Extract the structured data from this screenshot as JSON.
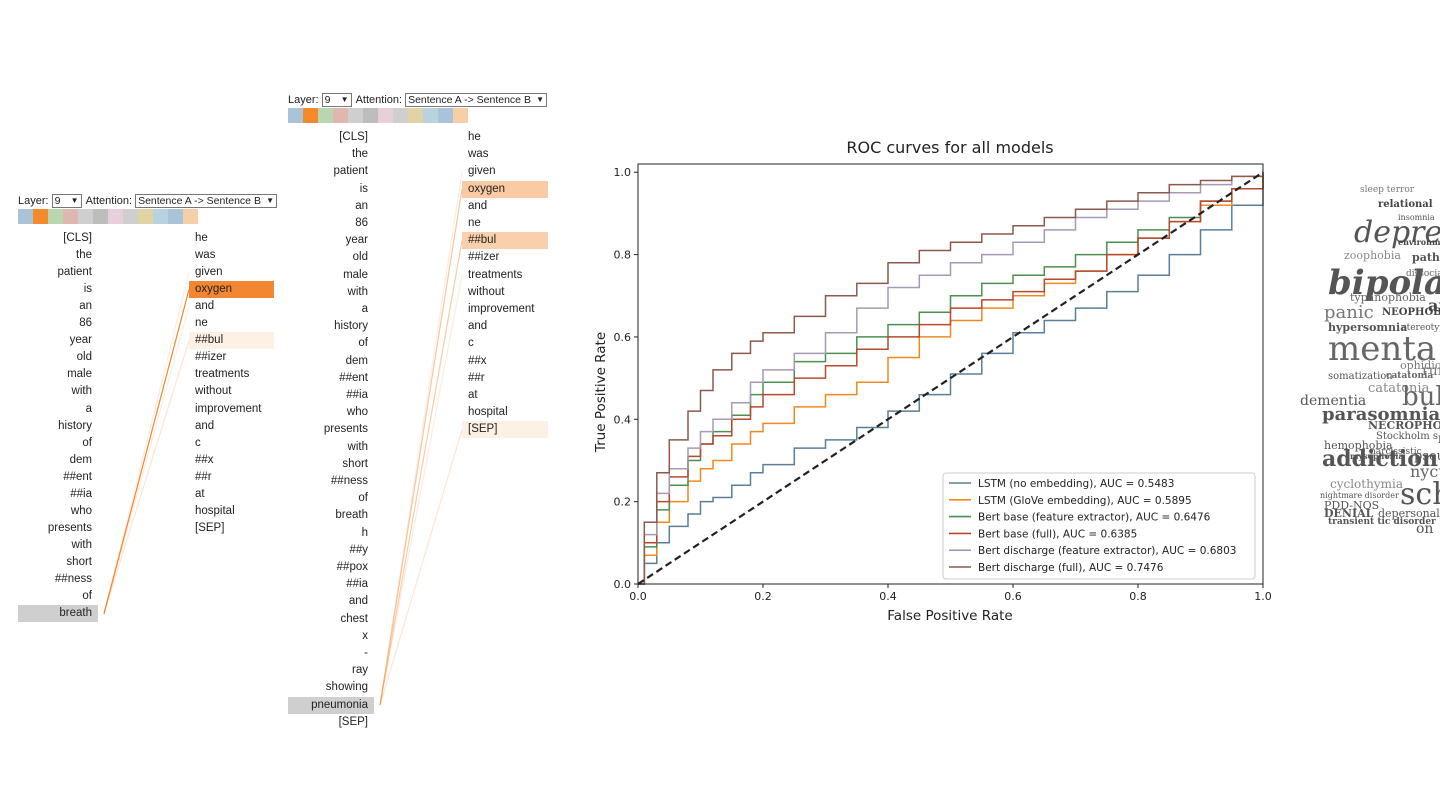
{
  "attention_widgets": [
    {
      "layer_label": "Layer:",
      "layer_value": "9",
      "attention_label": "Attention:",
      "attention_value": "Sentence A -> Sentence B",
      "swatch_colors": [
        "#a9c4d8",
        "#f58a2c",
        "#b9d6b0",
        "#e0b6b0",
        "#cfcfcf",
        "#bdbdbd",
        "#e8cfdc",
        "#cfcfcf",
        "#e2d3a4",
        "#b8d2e0",
        "#a9c4d8",
        "#f7cfa6"
      ],
      "left_tokens": [
        "[CLS]",
        "the",
        "patient",
        "is",
        "an",
        "86",
        "year",
        "old",
        "male",
        "with",
        "a",
        "history",
        "of",
        "dem",
        "##ent",
        "##ia",
        "who",
        "presents",
        "with",
        "short",
        "##ness",
        "of",
        "breath"
      ],
      "right_tokens": [
        "he",
        "was",
        "given",
        "oxygen",
        "and",
        "ne",
        "##bul",
        "##izer",
        "treatments",
        "without",
        "improvement",
        "and",
        "c",
        "##x",
        "##r",
        "at",
        "hospital",
        "[SEP]"
      ],
      "selected_left": 22,
      "right_weights": [
        0,
        0,
        0,
        0.95,
        0,
        0,
        0.12,
        0,
        0,
        0,
        0,
        0,
        0,
        0,
        0,
        0,
        0,
        0
      ],
      "links": [
        {
          "from": 22,
          "to": 3,
          "weight": 0.95
        },
        {
          "from": 22,
          "to": 6,
          "weight": 0.2
        },
        {
          "from": 22,
          "to": 2,
          "weight": 0.08
        },
        {
          "from": 22,
          "to": 4,
          "weight": 0.06
        }
      ]
    },
    {
      "layer_label": "Layer:",
      "layer_value": "9",
      "attention_label": "Attention:",
      "attention_value": "Sentence A -> Sentence B",
      "swatch_colors": [
        "#a9c4d8",
        "#f58a2c",
        "#b9d6b0",
        "#e0b6b0",
        "#cfcfcf",
        "#bdbdbd",
        "#e8cfdc",
        "#cfcfcf",
        "#e2d3a4",
        "#b8d2e0",
        "#a9c4d8",
        "#f7cfa6"
      ],
      "left_tokens": [
        "[CLS]",
        "the",
        "patient",
        "is",
        "an",
        "86",
        "year",
        "old",
        "male",
        "with",
        "a",
        "history",
        "of",
        "dem",
        "##ent",
        "##ia",
        "who",
        "presents",
        "with",
        "short",
        "##ness",
        "of",
        "breath",
        "h",
        "##y",
        "##pox",
        "##ia",
        "and",
        "chest",
        "x",
        "-",
        "ray",
        "showing",
        "pneumonia",
        "[SEP]"
      ],
      "right_tokens": [
        "he",
        "was",
        "given",
        "oxygen",
        "and",
        "ne",
        "##bul",
        "##izer",
        "treatments",
        "without",
        "improvement",
        "and",
        "c",
        "##x",
        "##r",
        "at",
        "hospital",
        "[SEP]"
      ],
      "selected_left": 33,
      "right_weights": [
        0,
        0,
        0,
        0.42,
        0,
        0,
        0.38,
        0,
        0,
        0,
        0,
        0,
        0,
        0,
        0,
        0,
        0,
        0.12
      ],
      "links": [
        {
          "from": 33,
          "to": 3,
          "weight": 0.45
        },
        {
          "from": 33,
          "to": 6,
          "weight": 0.4
        },
        {
          "from": 33,
          "to": 17,
          "weight": 0.2
        },
        {
          "from": 33,
          "to": 8,
          "weight": 0.08
        },
        {
          "from": 33,
          "to": 2,
          "weight": 0.06
        }
      ]
    }
  ],
  "chart_data": {
    "type": "line",
    "title": "ROC curves for all models",
    "xlabel": "False Positive Rate",
    "ylabel": "True Positive Rate",
    "xlim": [
      0,
      1
    ],
    "ylim": [
      0,
      1.02
    ],
    "xticks": [
      "0.0",
      "0.2",
      "0.4",
      "0.6",
      "0.8",
      "1.0"
    ],
    "yticks": [
      "0.0",
      "0.2",
      "0.4",
      "0.6",
      "0.8",
      "1.0"
    ],
    "legend_position": "lower-right",
    "grid": false,
    "diagonal": {
      "x": [
        0,
        1
      ],
      "y": [
        0,
        1
      ],
      "style": "dashed",
      "color": "#222222"
    },
    "series": [
      {
        "name": "LSTM (no embedding), AUC = 0.5483",
        "color": "#5b7f99",
        "x": [
          0,
          0.01,
          0.03,
          0.05,
          0.08,
          0.1,
          0.12,
          0.15,
          0.18,
          0.2,
          0.25,
          0.3,
          0.35,
          0.4,
          0.45,
          0.5,
          0.55,
          0.6,
          0.65,
          0.7,
          0.75,
          0.8,
          0.85,
          0.9,
          0.95,
          1.0
        ],
        "y": [
          0,
          0.05,
          0.1,
          0.14,
          0.17,
          0.2,
          0.21,
          0.24,
          0.27,
          0.29,
          0.33,
          0.35,
          0.38,
          0.42,
          0.46,
          0.51,
          0.56,
          0.61,
          0.64,
          0.67,
          0.71,
          0.75,
          0.8,
          0.86,
          0.92,
          1.0
        ]
      },
      {
        "name": "LSTM (GloVe embedding), AUC = 0.5895",
        "color": "#f0891f",
        "x": [
          0,
          0.01,
          0.03,
          0.05,
          0.08,
          0.1,
          0.12,
          0.15,
          0.18,
          0.2,
          0.25,
          0.3,
          0.35,
          0.4,
          0.45,
          0.5,
          0.55,
          0.6,
          0.65,
          0.7,
          0.75,
          0.8,
          0.85,
          0.9,
          0.95,
          1.0
        ],
        "y": [
          0,
          0.07,
          0.15,
          0.2,
          0.25,
          0.28,
          0.3,
          0.34,
          0.37,
          0.39,
          0.43,
          0.46,
          0.49,
          0.55,
          0.6,
          0.64,
          0.67,
          0.7,
          0.73,
          0.76,
          0.8,
          0.84,
          0.88,
          0.92,
          0.96,
          1.0
        ]
      },
      {
        "name": "Bert base (feature extractor), AUC = 0.6476",
        "color": "#4e8f51",
        "x": [
          0,
          0.01,
          0.03,
          0.05,
          0.08,
          0.1,
          0.12,
          0.15,
          0.18,
          0.2,
          0.25,
          0.3,
          0.35,
          0.4,
          0.45,
          0.5,
          0.55,
          0.6,
          0.65,
          0.7,
          0.75,
          0.8,
          0.85,
          0.9,
          0.95,
          1.0
        ],
        "y": [
          0,
          0.09,
          0.18,
          0.24,
          0.3,
          0.34,
          0.37,
          0.41,
          0.46,
          0.49,
          0.54,
          0.56,
          0.6,
          0.63,
          0.66,
          0.7,
          0.73,
          0.75,
          0.77,
          0.8,
          0.83,
          0.86,
          0.89,
          0.93,
          0.96,
          1.0
        ]
      },
      {
        "name": "Bert base (full), AUC = 0.6385",
        "color": "#b7492e",
        "x": [
          0,
          0.01,
          0.03,
          0.05,
          0.08,
          0.1,
          0.12,
          0.15,
          0.18,
          0.2,
          0.25,
          0.3,
          0.35,
          0.4,
          0.45,
          0.5,
          0.55,
          0.6,
          0.65,
          0.7,
          0.75,
          0.8,
          0.85,
          0.9,
          0.95,
          1.0
        ],
        "y": [
          0,
          0.1,
          0.2,
          0.26,
          0.31,
          0.34,
          0.36,
          0.4,
          0.43,
          0.46,
          0.5,
          0.53,
          0.57,
          0.6,
          0.63,
          0.67,
          0.69,
          0.71,
          0.74,
          0.76,
          0.8,
          0.84,
          0.88,
          0.93,
          0.96,
          1.0
        ]
      },
      {
        "name": "Bert discharge (feature extractor), AUC = 0.6803",
        "color": "#a69ab6",
        "x": [
          0,
          0.01,
          0.03,
          0.05,
          0.08,
          0.1,
          0.12,
          0.15,
          0.18,
          0.2,
          0.25,
          0.3,
          0.35,
          0.4,
          0.45,
          0.5,
          0.55,
          0.6,
          0.65,
          0.7,
          0.75,
          0.8,
          0.85,
          0.9,
          0.95,
          1.0
        ],
        "y": [
          0,
          0.12,
          0.22,
          0.28,
          0.33,
          0.37,
          0.4,
          0.44,
          0.49,
          0.52,
          0.56,
          0.61,
          0.67,
          0.72,
          0.75,
          0.78,
          0.8,
          0.83,
          0.86,
          0.89,
          0.91,
          0.93,
          0.95,
          0.97,
          0.99,
          1.0
        ]
      },
      {
        "name": "Bert discharge (full), AUC = 0.7476",
        "color": "#8b5a4b",
        "x": [
          0,
          0.01,
          0.03,
          0.05,
          0.08,
          0.1,
          0.12,
          0.15,
          0.18,
          0.2,
          0.25,
          0.3,
          0.35,
          0.4,
          0.45,
          0.5,
          0.55,
          0.6,
          0.65,
          0.7,
          0.75,
          0.8,
          0.85,
          0.9,
          0.95,
          1.0
        ],
        "y": [
          0,
          0.15,
          0.27,
          0.35,
          0.42,
          0.47,
          0.52,
          0.56,
          0.59,
          0.61,
          0.65,
          0.7,
          0.73,
          0.78,
          0.81,
          0.83,
          0.85,
          0.87,
          0.89,
          0.91,
          0.93,
          0.95,
          0.97,
          0.98,
          0.99,
          1.0
        ]
      }
    ]
  },
  "word_cloud": {
    "words": [
      "sleep terror",
      "relational",
      "insomnia",
      "depres",
      "environme",
      "zoophobia",
      "pathol",
      "bipolar",
      "dissocia",
      "typanophobia",
      "panic",
      "NEOPHOBIA",
      "anoso",
      "hypersomnia",
      "stereotypic m",
      "menta",
      "ophidiophobia",
      "somatization",
      "catatonia",
      "rum",
      "catatonia",
      "bulim",
      "dementia",
      "parasomnia",
      "NECROPHOBIA",
      "hemophobia",
      "Stockholm s",
      "mysophobia",
      "RAD",
      "narcissistic",
      "pseudo",
      "addiction",
      "nyctoph",
      "cyclothymia",
      "schiz",
      "nightmare disorder",
      "PDD-NOS",
      "DENIAL",
      "depersonalizat",
      "transient tic disorder",
      "on"
    ]
  }
}
